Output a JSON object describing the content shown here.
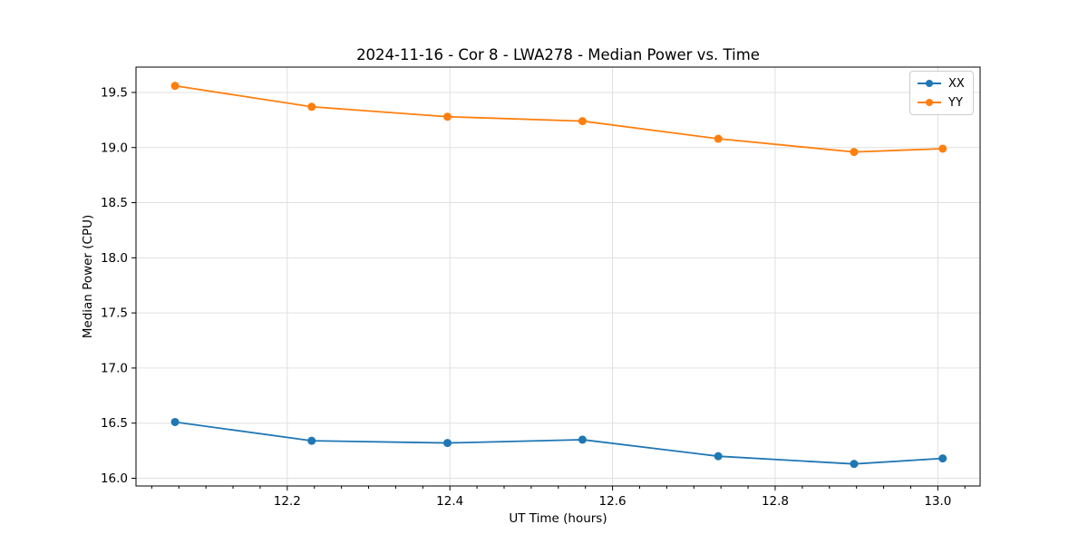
{
  "chart_data": {
    "type": "line",
    "title": "2024-11-16 - Cor 8 - LWA278 - Median Power vs. Time",
    "xlabel": "UT Time (hours)",
    "ylabel": "Median Power (CPU)",
    "x": [
      12.062,
      12.23,
      12.397,
      12.563,
      12.73,
      12.897,
      13.006
    ],
    "series": [
      {
        "name": "XX",
        "color": "#1f77b4",
        "values": [
          16.51,
          16.34,
          16.32,
          16.35,
          16.2,
          16.13,
          16.18
        ]
      },
      {
        "name": "YY",
        "color": "#ff7f0e",
        "values": [
          19.56,
          19.37,
          19.28,
          19.24,
          19.08,
          18.96,
          18.99
        ]
      }
    ],
    "xlim": [
      12.014,
      13.052
    ],
    "ylim": [
      15.93,
      19.73
    ],
    "x_ticks": [
      12.2,
      12.4,
      12.6,
      12.8,
      13.0
    ],
    "y_ticks": [
      16.0,
      16.5,
      17.0,
      17.5,
      18.0,
      18.5,
      19.0,
      19.5
    ],
    "x_minor_divisions": 6,
    "grid": true,
    "grid_color": "#e0e0e0",
    "spine_color": "#000000",
    "tick_label_color": "#000000",
    "legend_position": "upper right",
    "marker": "circle"
  }
}
